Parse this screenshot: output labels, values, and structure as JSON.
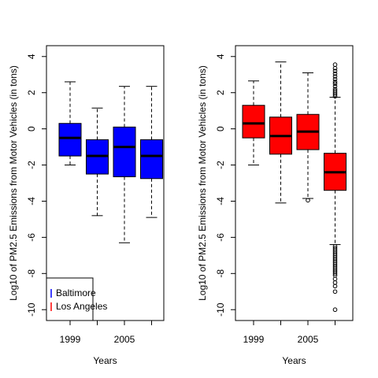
{
  "chart_data": [
    {
      "type": "boxplot",
      "ylabel": "Log10 of PM2.5 Emissions from Motor Vehicles (in tons)",
      "xlabel": "Years",
      "ylim": [
        -10.6,
        4.6
      ],
      "yticks": [
        4,
        2,
        0,
        -2,
        -4,
        -6,
        -8,
        -10
      ],
      "xtick_labels": [
        "1999",
        "2005"
      ],
      "color": "#0000ff",
      "boxes": [
        {
          "year": "1999",
          "whisker_low": -2.0,
          "q1": -1.5,
          "median": -0.5,
          "q3": 0.3,
          "whisker_high": 2.6
        },
        {
          "year": "2002",
          "whisker_low": -4.8,
          "q1": -2.5,
          "median": -1.5,
          "q3": -0.6,
          "whisker_high": 1.15
        },
        {
          "year": "2005",
          "whisker_low": -6.3,
          "q1": -2.65,
          "median": -1.0,
          "q3": 0.1,
          "whisker_high": 2.35
        },
        {
          "year": "2008",
          "whisker_low": -4.9,
          "q1": -2.75,
          "median": -1.5,
          "q3": -0.6,
          "whisker_high": 2.35
        }
      ],
      "legend": {
        "placement": "bottom-left",
        "entries": [
          {
            "label": "Baltimore",
            "color": "#0000ff"
          },
          {
            "label": "Los Angeles",
            "color": "#ff0000"
          }
        ]
      }
    },
    {
      "type": "boxplot",
      "ylabel": "Log10 of PM2.5 Emissions from Motor Vehicles (in tons)",
      "xlabel": "Years",
      "ylim": [
        -10.6,
        4.6
      ],
      "yticks": [
        4,
        2,
        0,
        -2,
        -4,
        -6,
        -8,
        -10
      ],
      "xtick_labels": [
        "1999",
        "2005"
      ],
      "color": "#ff0000",
      "boxes": [
        {
          "year": "1999",
          "whisker_low": -2.0,
          "q1": -0.5,
          "median": 0.3,
          "q3": 1.3,
          "whisker_high": 2.65,
          "outliers": []
        },
        {
          "year": "2002",
          "whisker_low": -4.1,
          "q1": -1.4,
          "median": -0.4,
          "q3": 0.65,
          "whisker_high": 3.7,
          "outliers": []
        },
        {
          "year": "2005",
          "whisker_low": -3.85,
          "q1": -1.15,
          "median": -0.15,
          "q3": 0.8,
          "whisker_high": 3.1,
          "outliers": [
            -3.95
          ]
        },
        {
          "year": "2008",
          "whisker_low": -6.4,
          "q1": -3.4,
          "median": -2.4,
          "q3": -1.35,
          "whisker_high": 1.75,
          "outliers": [
            1.8,
            1.9,
            2.0,
            2.1,
            2.2,
            2.35,
            2.5,
            2.6,
            2.75,
            2.9,
            3.05,
            3.2,
            3.35,
            3.55,
            -6.5,
            -6.6,
            -6.7,
            -6.8,
            -6.9,
            -7.0,
            -7.1,
            -7.2,
            -7.3,
            -7.4,
            -7.5,
            -7.6,
            -7.7,
            -7.8,
            -7.9,
            -8.0,
            -8.1,
            -8.3,
            -8.5,
            -8.7,
            -9.0,
            -10.0
          ]
        }
      ]
    }
  ]
}
